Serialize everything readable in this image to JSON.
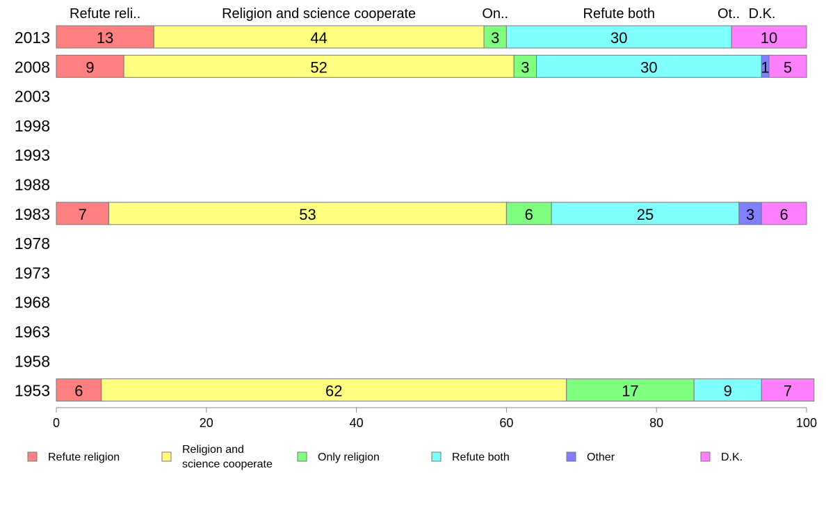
{
  "chart_data": {
    "type": "bar",
    "orientation": "horizontal",
    "stacked": true,
    "categories": [
      "2013",
      "2008",
      "2003",
      "1998",
      "1993",
      "1988",
      "1983",
      "1978",
      "1973",
      "1968",
      "1963",
      "1958",
      "1953"
    ],
    "series": [
      {
        "name": "Refute religion",
        "values": [
          13,
          9,
          null,
          null,
          null,
          null,
          7,
          null,
          null,
          null,
          null,
          null,
          6
        ]
      },
      {
        "name": "Religion and science cooperate",
        "values": [
          44,
          52,
          null,
          null,
          null,
          null,
          53,
          null,
          null,
          null,
          null,
          null,
          62
        ]
      },
      {
        "name": "Only religion",
        "values": [
          3,
          3,
          null,
          null,
          null,
          null,
          6,
          null,
          null,
          null,
          null,
          null,
          17
        ]
      },
      {
        "name": "Refute both",
        "values": [
          30,
          30,
          null,
          null,
          null,
          null,
          25,
          null,
          null,
          null,
          null,
          null,
          9
        ]
      },
      {
        "name": "Other",
        "values": [
          0,
          1,
          null,
          null,
          null,
          null,
          3,
          null,
          null,
          null,
          null,
          null,
          0
        ]
      },
      {
        "name": "D.K.",
        "values": [
          10,
          5,
          null,
          null,
          null,
          null,
          6,
          null,
          null,
          null,
          null,
          null,
          7
        ]
      }
    ],
    "top_labels": [
      "Refute reli..",
      "Religion and science cooperate",
      "On..",
      "Refute both",
      "Ot..",
      "D.K."
    ],
    "xlim": [
      0,
      100
    ],
    "xticks": [
      0,
      20,
      40,
      60,
      80,
      100
    ],
    "xlabel": "",
    "ylabel": "",
    "title": "",
    "grid": false,
    "legend_position": "bottom"
  },
  "legend": {
    "items": [
      {
        "lines": [
          "Refute religion"
        ]
      },
      {
        "lines": [
          "Religion and",
          "science cooperate"
        ]
      },
      {
        "lines": [
          "Only religion"
        ]
      },
      {
        "lines": [
          "Refute both"
        ]
      },
      {
        "lines": [
          "Other"
        ]
      },
      {
        "lines": [
          "D.K."
        ]
      }
    ]
  },
  "colors": {
    "series": [
      "#ff8080",
      "#ffff80",
      "#80ff80",
      "#80ffff",
      "#8080ff",
      "#ff80ff"
    ],
    "axis": "#888888",
    "text": "#000000",
    "bar_border": "#777777"
  }
}
